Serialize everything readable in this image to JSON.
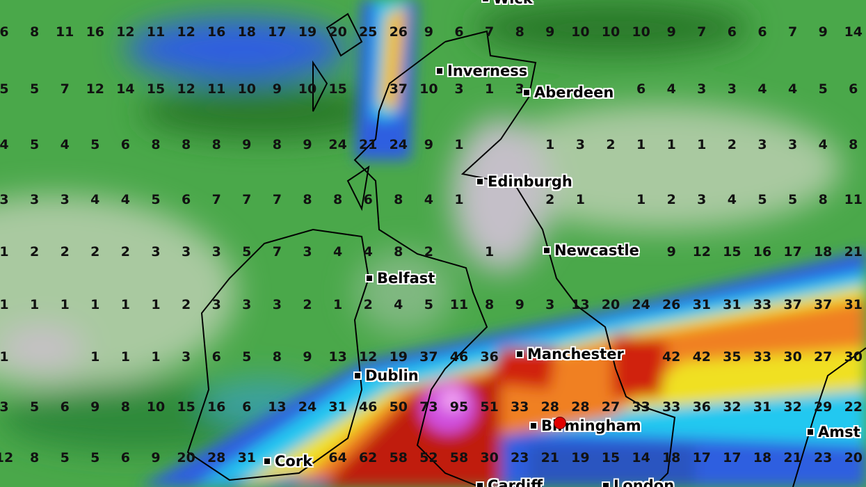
{
  "colors": {
    "low": "#4aa84a",
    "dry": "#c4bfc8",
    "blue": "#2f5fe0",
    "cyan": "#20c8f0",
    "yellow": "#f0e020",
    "red": "#d02010",
    "magenta": "#d050e0",
    "marker_dot": "#e00000"
  },
  "grid_rows": [
    [
      6,
      8,
      11,
      16,
      12,
      11,
      12,
      16,
      18,
      17,
      19,
      20,
      25,
      26,
      9,
      6,
      7,
      8,
      9,
      10,
      10,
      10,
      9,
      7,
      6,
      6,
      7,
      9,
      14
    ],
    [
      5,
      5,
      7,
      12,
      14,
      15,
      12,
      11,
      10,
      9,
      10,
      15,
      null,
      37,
      10,
      3,
      1,
      3,
      null,
      null,
      null,
      6,
      4,
      3,
      3,
      4,
      4,
      5,
      6
    ],
    [
      4,
      5,
      4,
      5,
      6,
      8,
      8,
      8,
      9,
      8,
      9,
      24,
      21,
      24,
      9,
      1,
      null,
      null,
      1,
      3,
      2,
      1,
      1,
      1,
      2,
      3,
      3,
      4,
      8
    ],
    [
      3,
      3,
      3,
      4,
      4,
      5,
      6,
      7,
      7,
      7,
      8,
      8,
      6,
      8,
      4,
      1,
      null,
      null,
      2,
      1,
      null,
      1,
      2,
      3,
      4,
      5,
      5,
      8,
      11
    ],
    [
      1,
      2,
      2,
      2,
      2,
      3,
      3,
      3,
      5,
      7,
      3,
      4,
      4,
      8,
      2,
      null,
      1,
      null,
      null,
      null,
      null,
      null,
      9,
      12,
      15,
      16,
      17,
      18,
      21
    ],
    [
      1,
      1,
      1,
      1,
      1,
      1,
      2,
      3,
      3,
      3,
      2,
      1,
      2,
      4,
      5,
      11,
      8,
      9,
      3,
      13,
      20,
      24,
      26,
      31,
      31,
      33,
      37,
      37,
      31
    ],
    [
      1,
      null,
      null,
      1,
      1,
      1,
      3,
      6,
      5,
      8,
      9,
      13,
      12,
      19,
      37,
      46,
      36,
      null,
      null,
      null,
      null,
      null,
      42,
      42,
      35,
      33,
      30,
      27,
      30
    ],
    [
      3,
      5,
      6,
      9,
      8,
      10,
      15,
      16,
      6,
      13,
      24,
      31,
      46,
      50,
      73,
      95,
      51,
      33,
      28,
      28,
      27,
      33,
      33,
      36,
      32,
      31,
      32,
      29,
      22
    ],
    [
      12,
      8,
      5,
      5,
      6,
      9,
      20,
      28,
      31,
      null,
      null,
      64,
      62,
      58,
      52,
      58,
      30,
      23,
      21,
      19,
      15,
      14,
      18,
      17,
      17,
      18,
      21,
      23,
      20
    ]
  ],
  "cities": [
    {
      "name": "Wick"
    },
    {
      "name": "Inverness"
    },
    {
      "name": "Aberdeen"
    },
    {
      "name": "Edinburgh"
    },
    {
      "name": "Newcastle"
    },
    {
      "name": "Belfast"
    },
    {
      "name": "Manchester"
    },
    {
      "name": "Dublin"
    },
    {
      "name": "Birmingham"
    },
    {
      "name": "Cork"
    },
    {
      "name": "Cardiff"
    },
    {
      "name": "London"
    },
    {
      "name": "Amst"
    }
  ]
}
